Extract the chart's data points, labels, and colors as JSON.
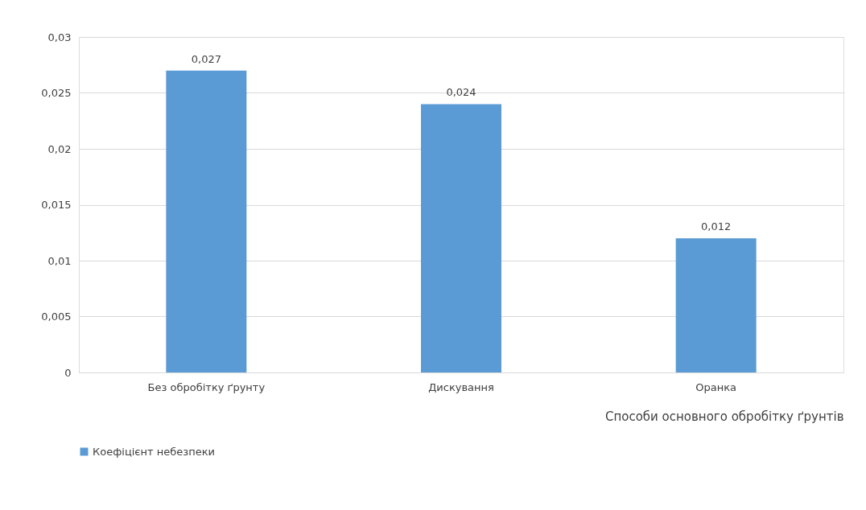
{
  "chart_data": {
    "type": "bar",
    "xlabel": "Способи основного обробітку ґрунтів",
    "categories": [
      "Без обробітку ґрунту",
      "Дискування",
      "Оранка"
    ],
    "series": [
      {
        "name": "Коефіцієнт небезпеки",
        "color": "#5b9bd5",
        "values": [
          0.027,
          0.024,
          0.012
        ],
        "value_labels": [
          "0,027",
          "0,024",
          "0,012"
        ]
      }
    ],
    "ylim": [
      0,
      0.03
    ],
    "yticks": [
      {
        "value": 0,
        "label": "0"
      },
      {
        "value": 0.005,
        "label": "0,005"
      },
      {
        "value": 0.01,
        "label": "0,01"
      },
      {
        "value": 0.015,
        "label": "0,015"
      },
      {
        "value": 0.02,
        "label": "0,02"
      },
      {
        "value": 0.025,
        "label": "0,025"
      },
      {
        "value": 0.03,
        "label": "0,03"
      }
    ],
    "grid": "y",
    "legend": "bottom"
  }
}
